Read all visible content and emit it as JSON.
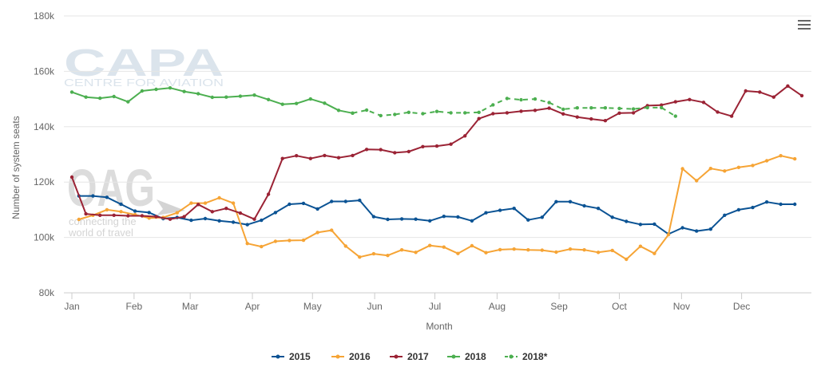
{
  "menu": {
    "icon": "hamburger-menu-icon"
  },
  "watermarks": {
    "capa_logo": "CAPA",
    "capa_tagline": "CENTRE FOR AVIATION",
    "oag_logo": "OAG",
    "oag_tagline_1": "connecting the",
    "oag_tagline_2": "world of travel"
  },
  "chart_data": {
    "type": "line",
    "title": "",
    "xlabel": "Month",
    "ylabel": "Number of system seats",
    "ylim": [
      80000,
      180000
    ],
    "y_ticks": [
      80000,
      100000,
      120000,
      140000,
      160000,
      180000
    ],
    "y_tick_labels": [
      "80k",
      "100k",
      "120k",
      "140k",
      "160k",
      "180k"
    ],
    "x_range_weeks": [
      0,
      52
    ],
    "x_tick_weeks": [
      0,
      4.43,
      8.43,
      12.86,
      17.14,
      21.57,
      25.86,
      30.29,
      34.71,
      39,
      43.43,
      47.71
    ],
    "x_tick_labels": [
      "Jan",
      "Feb",
      "Mar",
      "Apr",
      "May",
      "Jun",
      "Jul",
      "Aug",
      "Sep",
      "Oct",
      "Nov",
      "Dec"
    ],
    "grid": true,
    "legend_position": "bottom-center",
    "series": [
      {
        "name": "2015",
        "color": "#0b5394",
        "dashed": false,
        "start_week": 0.5,
        "values": [
          115000,
          115000,
          114500,
          112000,
          109500,
          109000,
          106800,
          107200,
          106200,
          106800,
          106000,
          105500,
          104600,
          106200,
          109000,
          112000,
          112300,
          110300,
          113000,
          113000,
          113400,
          107500,
          106500,
          106700,
          106600,
          106000,
          107600,
          107400,
          106000,
          108900,
          109800,
          110500,
          106300,
          107300,
          112900,
          112900,
          111400,
          110500,
          107300,
          105800,
          104700,
          104800,
          101200,
          103500,
          102300,
          103000,
          108000,
          110000,
          110800,
          112800,
          112000,
          112000
        ]
      },
      {
        "name": "2016",
        "color": "#f6a435",
        "dashed": false,
        "start_week": 0.5,
        "values": [
          106500,
          108000,
          110000,
          109300,
          108200,
          107000,
          107200,
          108900,
          112400,
          112400,
          114300,
          112400,
          97800,
          96700,
          98600,
          98900,
          99000,
          101800,
          102600,
          96900,
          92900,
          94100,
          93500,
          95500,
          94600,
          97100,
          96500,
          94200,
          97000,
          94500,
          95600,
          95800,
          95500,
          95400,
          94700,
          95800,
          95500,
          94600,
          95300,
          92100,
          96800,
          94200,
          101000,
          124800,
          120500,
          124900,
          124000,
          125300,
          126000,
          127700,
          129500,
          128400
        ]
      },
      {
        "name": "2017",
        "color": "#9b2335",
        "dashed": false,
        "start_week": 0.0,
        "values": [
          121800,
          108500,
          108000,
          108000,
          107800,
          107800,
          107500,
          106600,
          107500,
          111900,
          109300,
          110500,
          108800,
          106600,
          115600,
          128500,
          129500,
          128500,
          129600,
          128800,
          129600,
          131800,
          131700,
          130600,
          131000,
          132800,
          133000,
          133700,
          136700,
          142900,
          144700,
          145000,
          145600,
          145900,
          146700,
          144600,
          143500,
          142800,
          142200,
          144900,
          145000,
          147600,
          147800,
          149000,
          149800,
          148800,
          145300,
          143800,
          152900,
          152500,
          150700,
          154700,
          151200
        ]
      },
      {
        "name": "2018",
        "color": "#4caf50",
        "dashed": false,
        "start_week": 0.0,
        "values": [
          152500,
          150700,
          150300,
          150900,
          149000,
          152900,
          153500,
          154000,
          152700,
          151900,
          150600,
          150700,
          151000,
          151400,
          149800,
          148100,
          148400,
          150000,
          148500,
          145900,
          144900
        ]
      },
      {
        "name": "2018*",
        "color": "#4caf50",
        "dashed": true,
        "start_week": 20.0,
        "values": [
          144900,
          146000,
          144000,
          144400,
          145200,
          144700,
          145500,
          145000,
          145000,
          145200,
          147900,
          150200,
          149700,
          150000,
          148700,
          146300,
          146800,
          146800,
          146800,
          146600,
          146400,
          146900,
          146900,
          143800
        ]
      }
    ]
  }
}
